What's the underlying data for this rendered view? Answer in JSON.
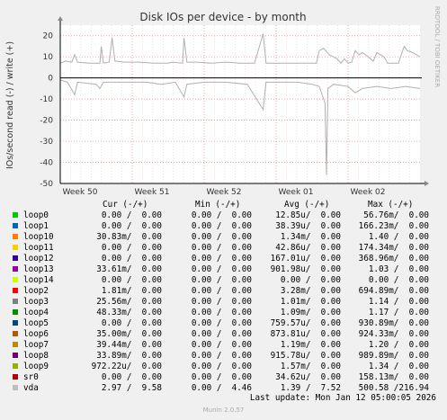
{
  "chart_data": {
    "type": "line",
    "title": "Disk IOs per device - by month",
    "ylabel": "IOs/second read (-) / write (+)",
    "watermark": "RRDTOOL / TOBI OETIKER",
    "ylim": [
      -50,
      25
    ],
    "yticks": [
      20,
      10,
      0,
      -10,
      -20,
      -30,
      -40,
      -50
    ],
    "xticks": [
      "Week 50",
      "Week 51",
      "Week 52",
      "Week 01",
      "Week 02"
    ],
    "x_range_weeks": [
      0,
      5.0
    ],
    "grid": true,
    "series": [
      {
        "ref": "vda",
        "color": "#b0b0b0",
        "write_points": [
          [
            0,
            7
          ],
          [
            0.08,
            8
          ],
          [
            0.16,
            7.5
          ],
          [
            0.2,
            11
          ],
          [
            0.24,
            7.5
          ],
          [
            0.4,
            7
          ],
          [
            0.55,
            7
          ],
          [
            0.57,
            15
          ],
          [
            0.6,
            7
          ],
          [
            0.68,
            7.5
          ],
          [
            0.72,
            19
          ],
          [
            0.76,
            8
          ],
          [
            0.9,
            7.5
          ],
          [
            1.1,
            7.5
          ],
          [
            1.3,
            7
          ],
          [
            1.5,
            7
          ],
          [
            1.55,
            7.5
          ],
          [
            1.7,
            7
          ],
          [
            1.72,
            19
          ],
          [
            1.76,
            7.5
          ],
          [
            1.9,
            7.5
          ],
          [
            2.1,
            7
          ],
          [
            2.3,
            7.5
          ],
          [
            2.5,
            7
          ],
          [
            2.7,
            7
          ],
          [
            2.82,
            21
          ],
          [
            2.86,
            7
          ],
          [
            3.0,
            7
          ],
          [
            3.2,
            7
          ],
          [
            3.4,
            7
          ],
          [
            3.56,
            7
          ],
          [
            3.6,
            13
          ],
          [
            3.66,
            14
          ],
          [
            3.74,
            11
          ],
          [
            3.85,
            9
          ],
          [
            3.9,
            7
          ],
          [
            3.95,
            9
          ],
          [
            4.0,
            7
          ],
          [
            4.05,
            7.5
          ],
          [
            4.1,
            13
          ],
          [
            4.15,
            11
          ],
          [
            4.2,
            12
          ],
          [
            4.28,
            10
          ],
          [
            4.35,
            8
          ],
          [
            4.4,
            12
          ],
          [
            4.45,
            11
          ],
          [
            4.5,
            10
          ],
          [
            4.55,
            7
          ],
          [
            4.7,
            7
          ],
          [
            4.78,
            15
          ],
          [
            4.82,
            13
          ],
          [
            4.9,
            12
          ],
          [
            5.0,
            10
          ]
        ],
        "read_points": [
          [
            0,
            -1
          ],
          [
            0.1,
            -2
          ],
          [
            0.2,
            -8
          ],
          [
            0.24,
            -2
          ],
          [
            0.5,
            -3
          ],
          [
            0.55,
            -5
          ],
          [
            0.6,
            -2
          ],
          [
            0.9,
            -2
          ],
          [
            1.2,
            -2
          ],
          [
            1.4,
            -3
          ],
          [
            1.6,
            -2
          ],
          [
            1.72,
            -9
          ],
          [
            1.76,
            -3
          ],
          [
            2.0,
            -2
          ],
          [
            2.3,
            -2
          ],
          [
            2.6,
            -3
          ],
          [
            2.82,
            -15
          ],
          [
            2.86,
            -2
          ],
          [
            3.1,
            -2
          ],
          [
            3.3,
            -2
          ],
          [
            3.5,
            -3
          ],
          [
            3.6,
            -4
          ],
          [
            3.68,
            -12
          ],
          [
            3.7,
            -46
          ],
          [
            3.72,
            -5
          ],
          [
            3.8,
            -3
          ],
          [
            4.0,
            -4
          ],
          [
            4.1,
            -7
          ],
          [
            4.2,
            -5
          ],
          [
            4.4,
            -4
          ],
          [
            4.6,
            -5
          ],
          [
            4.8,
            -4
          ],
          [
            5.0,
            -5
          ]
        ]
      }
    ]
  },
  "legend": {
    "header_cur": "Cur (-/+)",
    "header_min": "Min (-/+)",
    "header_avg": "Avg (-/+)",
    "header_max": "Max (-/+)",
    "rows": [
      {
        "name": "loop0",
        "color": "#00cc00",
        "cur": "0.00 /  0.00",
        "min": "0.00 /  0.00",
        "avg": "12.85u/  0.00",
        "max": "56.76m/  0.00"
      },
      {
        "name": "loop1",
        "color": "#0066b3",
        "cur": "0.00 /  0.00",
        "min": "0.00 /  0.00",
        "avg": "38.39u/  0.00",
        "max": "166.23m/  0.00"
      },
      {
        "name": "loop10",
        "color": "#ff8000",
        "cur": "30.83m/  0.00",
        "min": "0.00 /  0.00",
        "avg": "1.34m/  0.00",
        "max": "1.40 /  0.00"
      },
      {
        "name": "loop11",
        "color": "#ffcc00",
        "cur": "0.00 /  0.00",
        "min": "0.00 /  0.00",
        "avg": "42.86u/  0.00",
        "max": "174.34m/  0.00"
      },
      {
        "name": "loop12",
        "color": "#330099",
        "cur": "0.00 /  0.00",
        "min": "0.00 /  0.00",
        "avg": "167.01u/  0.00",
        "max": "368.96m/  0.00"
      },
      {
        "name": "loop13",
        "color": "#990099",
        "cur": "33.61m/  0.00",
        "min": "0.00 /  0.00",
        "avg": "901.98u/  0.00",
        "max": "1.03 /  0.00"
      },
      {
        "name": "loop14",
        "color": "#ccff00",
        "cur": "0.00 /  0.00",
        "min": "0.00 /  0.00",
        "avg": "0.00 /  0.00",
        "max": "0.00 /  0.00"
      },
      {
        "name": "loop2",
        "color": "#ff0000",
        "cur": "1.81m/  0.00",
        "min": "0.00 /  0.00",
        "avg": "3.28m/  0.00",
        "max": "694.89m/  0.00"
      },
      {
        "name": "loop3",
        "color": "#808080",
        "cur": "25.56m/  0.00",
        "min": "0.00 /  0.00",
        "avg": "1.01m/  0.00",
        "max": "1.14 /  0.00"
      },
      {
        "name": "loop4",
        "color": "#008f00",
        "cur": "48.33m/  0.00",
        "min": "0.00 /  0.00",
        "avg": "1.09m/  0.00",
        "max": "1.17 /  0.00"
      },
      {
        "name": "loop5",
        "color": "#00487d",
        "cur": "0.00 /  0.00",
        "min": "0.00 /  0.00",
        "avg": "759.57u/  0.00",
        "max": "930.89m/  0.00"
      },
      {
        "name": "loop6",
        "color": "#b35a00",
        "cur": "35.00m/  0.00",
        "min": "0.00 /  0.00",
        "avg": "873.81u/  0.00",
        "max": "924.33m/  0.00"
      },
      {
        "name": "loop7",
        "color": "#b38f00",
        "cur": "39.44m/  0.00",
        "min": "0.00 /  0.00",
        "avg": "1.19m/  0.00",
        "max": "1.20 /  0.00"
      },
      {
        "name": "loop8",
        "color": "#6b006b",
        "cur": "33.89m/  0.00",
        "min": "0.00 /  0.00",
        "avg": "915.78u/  0.00",
        "max": "989.89m/  0.00"
      },
      {
        "name": "loop9",
        "color": "#8fb300",
        "cur": "972.22u/  0.00",
        "min": "0.00 /  0.00",
        "avg": "1.57m/  0.00",
        "max": "1.34 /  0.00"
      },
      {
        "name": "sr0",
        "color": "#b30000",
        "cur": "0.00 /  0.00",
        "min": "0.00 /  0.00",
        "avg": "34.62u/  0.00",
        "max": "158.13m/  0.00"
      },
      {
        "name": "vda",
        "color": "#bebebe",
        "cur": "2.97 /  9.58",
        "min": "0.00 /  4.46",
        "avg": "1.39 /  7.52",
        "max": "500.58 /216.94"
      }
    ]
  },
  "footer": {
    "last_update": "Last update: Mon Jan 12 05:00:05 2026",
    "munin_version": "Munin 2.0.57"
  }
}
